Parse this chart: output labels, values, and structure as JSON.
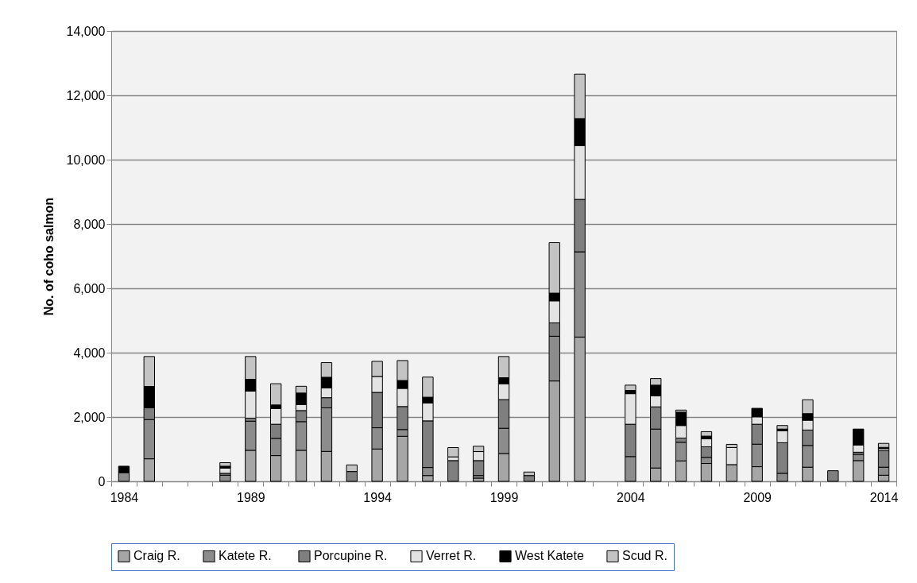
{
  "chart_data": {
    "type": "bar",
    "stacked": true,
    "ylabel": "No. of  coho salmon",
    "categories": [
      "1984",
      null,
      null,
      null,
      null,
      "1989",
      null,
      null,
      null,
      null,
      "1994",
      null,
      null,
      null,
      null,
      "1999",
      null,
      null,
      null,
      null,
      "2004",
      null,
      null,
      null,
      null,
      "2009",
      null,
      null,
      null,
      null,
      "2014"
    ],
    "series": [
      {
        "name": "Craig R.",
        "color": "#a6a6a6",
        "values": [
          0,
          700,
          0,
          0,
          0,
          965,
          800,
          965,
          930,
          0,
          1005,
          1400,
          180,
          0,
          100,
          865,
          0,
          3120,
          4485,
          0,
          0,
          415,
          635,
          555,
          520,
          455,
          0,
          440,
          0,
          645,
          190
        ]
      },
      {
        "name": "Katete  R.",
        "color": "#8c8c8c",
        "values": [
          270,
          1220,
          0,
          0,
          190,
          905,
          535,
          890,
          1355,
          0,
          660,
          210,
          250,
          0,
          80,
          785,
          0,
          1390,
          2650,
          0,
          770,
          1210,
          580,
          190,
          0,
          700,
          250,
          675,
          0,
          195,
          250
        ]
      },
      {
        "name": "Porcupine R.",
        "color": "#7f7f7f",
        "values": [
          0,
          365,
          0,
          0,
          60,
          95,
          440,
          345,
          315,
          305,
          1100,
          715,
          1450,
          645,
          465,
          890,
          180,
          415,
          1630,
          0,
          1005,
          690,
          130,
          330,
          0,
          620,
          950,
          480,
          330,
          65,
          510
        ]
      },
      {
        "name": "Verret R.",
        "color": "#e3e3e3",
        "values": [
          0,
          0,
          0,
          0,
          160,
          840,
          485,
          190,
          305,
          0,
          495,
          565,
          555,
          115,
          280,
          495,
          0,
          685,
          1675,
          0,
          950,
          345,
          390,
          245,
          530,
          230,
          370,
          305,
          0,
          225,
          65
        ]
      },
      {
        "name": "West Katete",
        "color": "#000000",
        "values": [
          200,
          665,
          0,
          0,
          60,
          365,
          115,
          355,
          330,
          0,
          0,
          245,
          180,
          0,
          0,
          185,
          0,
          240,
          835,
          0,
          100,
          330,
          415,
          85,
          0,
          265,
          55,
          205,
          0,
          495,
          40
        ]
      },
      {
        "name": "Scud R.",
        "color": "#c4c4c4",
        "values": [
          0,
          930,
          0,
          0,
          110,
          710,
          660,
          210,
          455,
          205,
          470,
          620,
          625,
          290,
          165,
          660,
          110,
          1570,
          1385,
          0,
          165,
          205,
          65,
          140,
          100,
          0,
          110,
          430,
          0,
          0,
          125
        ]
      }
    ],
    "ylim": [
      0,
      14000
    ],
    "yticks": [
      0,
      {
        "value": 2000,
        "label": "2,000"
      },
      {
        "value": 4000,
        "label": "4,000"
      },
      {
        "value": 6000,
        "label": "6,000"
      },
      {
        "value": 8000,
        "label": "8,000"
      },
      {
        "value": 10000,
        "label": "10,000"
      },
      {
        "value": 12000,
        "label": "12,000"
      },
      {
        "value": 14000,
        "label": "14,000"
      }
    ],
    "grid": "y",
    "legend": "bottom"
  }
}
